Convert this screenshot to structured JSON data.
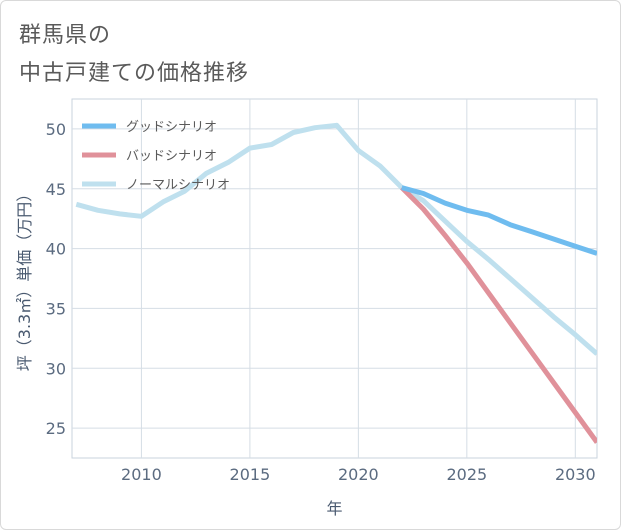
{
  "title_line1": "群馬県の",
  "title_line2": "中古戸建ての価格推移",
  "chart_data": {
    "type": "line",
    "xlabel": "年",
    "ylabel": "坪（3.3㎡）単価（万円）",
    "xlim": [
      2006.8,
      2031.0
    ],
    "ylim": [
      22.5,
      52.5
    ],
    "xticks": [
      2010,
      2015,
      2020,
      2025,
      2030
    ],
    "yticks": [
      25,
      30,
      35,
      40,
      45,
      50
    ],
    "legend_position": "top-left",
    "series": [
      {
        "name": "グッドシナリオ",
        "color": "#6fbcef",
        "x": [
          2022,
          2023,
          2024,
          2025,
          2026,
          2027,
          2028,
          2029,
          2030,
          2031
        ],
        "y": [
          45.1,
          44.6,
          43.8,
          43.2,
          42.8,
          42.0,
          41.4,
          40.8,
          40.2,
          39.6
        ]
      },
      {
        "name": "バッドシナリオ",
        "color": "#e0919a",
        "x": [
          2022,
          2023,
          2024,
          2025,
          2026,
          2027,
          2028,
          2029,
          2030,
          2031
        ],
        "y": [
          45.1,
          43.3,
          41.1,
          38.8,
          36.3,
          33.8,
          31.3,
          28.8,
          26.3,
          23.8
        ]
      },
      {
        "name": "ノーマルシナリオ",
        "color": "#bfe0ee",
        "x": [
          2007,
          2008,
          2009,
          2010,
          2011,
          2012,
          2013,
          2014,
          2015,
          2016,
          2017,
          2018,
          2019,
          2020,
          2021,
          2022,
          2023,
          2024,
          2025,
          2026,
          2027,
          2028,
          2029,
          2030,
          2031
        ],
        "y": [
          43.7,
          43.2,
          42.9,
          42.7,
          43.9,
          44.8,
          46.3,
          47.2,
          48.4,
          48.7,
          49.7,
          50.1,
          50.3,
          48.2,
          46.9,
          45.1,
          44.0,
          42.3,
          40.6,
          39.1,
          37.5,
          35.9,
          34.3,
          32.8,
          31.2
        ]
      }
    ]
  }
}
